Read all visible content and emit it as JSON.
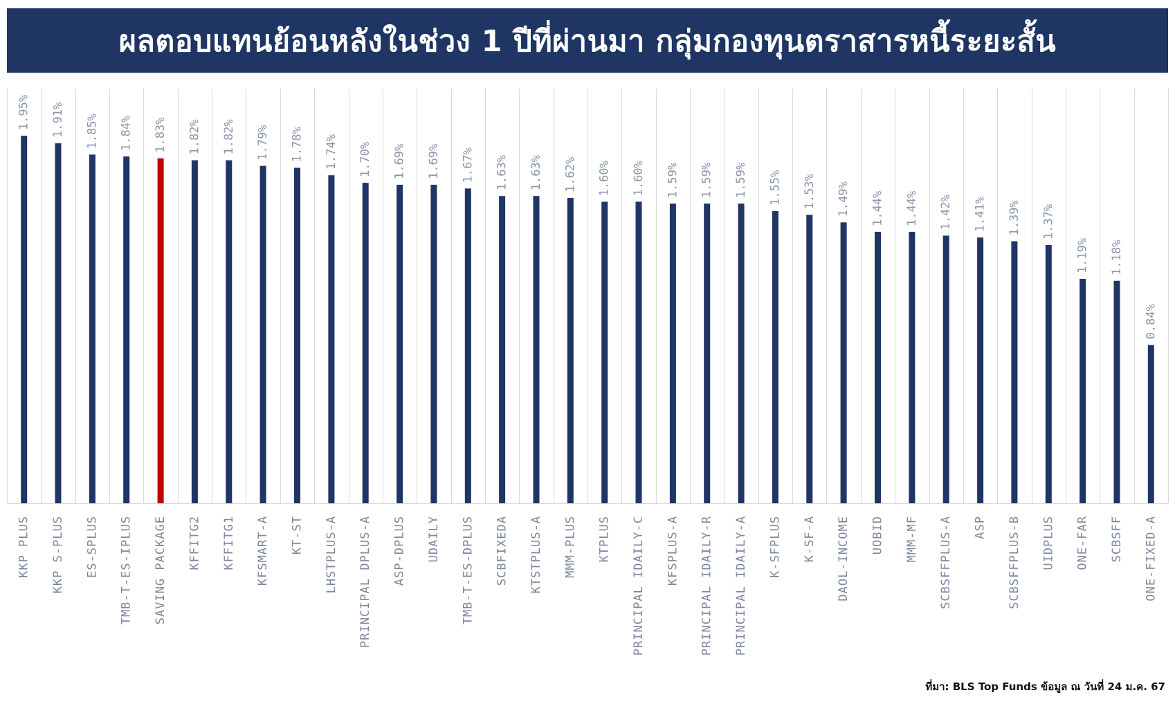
{
  "header": {
    "title": "ผลตอบแทนย้อนหลังในช่วง 1 ปีที่ผ่านมา กลุ่มกองทุนตราสารหนี้ระยะสั้น"
  },
  "colors": {
    "title_background": "#1f3564",
    "bar_default": "#1f3564",
    "bar_highlight": "#c00000",
    "grid": "#d9d9d9",
    "value_label": "#8a96ab",
    "category_label": "#7c889c"
  },
  "chart_data": {
    "type": "bar",
    "orientation": "vertical",
    "grid": true,
    "ylim": [
      0,
      2.2
    ],
    "categories": [
      "KKP PLUS",
      "KKP S-PLUS",
      "ES-SPLUS",
      "TMB-T-ES-IPLUS",
      "SAVING PACKAGE",
      "KFFITG2",
      "KFFITG1",
      "KFSMART-A",
      "KT-ST",
      "LHSTPLUS-A",
      "PRINCIPAL DPLUS-A",
      "ASP-DPLUS",
      "UDAILY",
      "TMB-T-ES-DPLUS",
      "SCBFIXEDA",
      "KTSTPLUS-A",
      "MMM-PLUS",
      "KTPLUS",
      "PRINCIPAL IDAILY-C",
      "KFSPLUS-A",
      "PRINCIPAL IDAILY-R",
      "PRINCIPAL IDAILY-A",
      "K-SFPLUS",
      "K-SF-A",
      "DAOL-INCOME",
      "UOBID",
      "MMM-MF",
      "SCBSFFPLUS-A",
      "ASP",
      "SCBSFFPLUS-B",
      "UIDPLUS",
      "ONE-FAR",
      "SCBSFF",
      "ONE-FIXED-A"
    ],
    "values": [
      1.95,
      1.91,
      1.85,
      1.84,
      1.83,
      1.82,
      1.82,
      1.79,
      1.78,
      1.74,
      1.7,
      1.69,
      1.69,
      1.67,
      1.63,
      1.63,
      1.62,
      1.6,
      1.6,
      1.59,
      1.59,
      1.59,
      1.55,
      1.53,
      1.49,
      1.44,
      1.44,
      1.42,
      1.41,
      1.39,
      1.37,
      1.19,
      1.18,
      0.84
    ],
    "value_labels": [
      "1.95%",
      "1.91%",
      "1.85%",
      "1.84%",
      "1.83%",
      "1.82%",
      "1.82%",
      "1.79%",
      "1.78%",
      "1.74%",
      "1.70%",
      "1.69%",
      "1.69%",
      "1.67%",
      "1.63%",
      "1.63%",
      "1.62%",
      "1.60%",
      "1.60%",
      "1.59%",
      "1.59%",
      "1.59%",
      "1.55%",
      "1.53%",
      "1.49%",
      "1.44%",
      "1.44%",
      "1.42%",
      "1.41%",
      "1.39%",
      "1.37%",
      "1.19%",
      "1.18%",
      "0.84%"
    ],
    "highlight_category": "SAVING PACKAGE"
  },
  "footer": {
    "source": "ที่มา: BLS Top Funds ข้อมูล ณ วันที่ 24 ม.ค. 67"
  }
}
